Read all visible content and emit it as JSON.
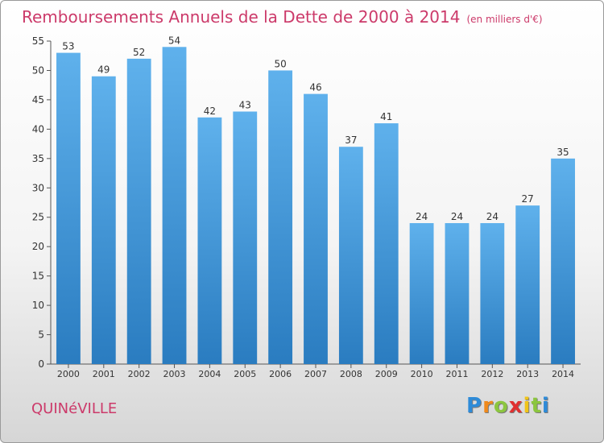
{
  "title": "Remboursements Annuels de la Dette de 2000 à 2014",
  "unit_note": "(en milliers d'€)",
  "town": "QUINéVILLE",
  "logo": {
    "letters": [
      "P",
      "r",
      "o",
      "x",
      "i",
      "t",
      "i"
    ],
    "colors": [
      "#2e8bd8",
      "#f08a1c",
      "#8cc63f",
      "#e03030",
      "#f0c419",
      "#8cc63f",
      "#2e8bd8"
    ]
  },
  "colors": {
    "bar_top": "#5fb1ec",
    "bar_bottom": "#2a7cc0",
    "title": "#cc3a6a"
  },
  "chart_data": {
    "type": "bar",
    "categories": [
      "2000",
      "2001",
      "2002",
      "2003",
      "2004",
      "2005",
      "2006",
      "2007",
      "2008",
      "2009",
      "2010",
      "2011",
      "2012",
      "2013",
      "2014"
    ],
    "values": [
      53,
      49,
      52,
      54,
      42,
      43,
      50,
      46,
      37,
      41,
      24,
      24,
      24,
      27,
      35
    ],
    "ylim": [
      0,
      55
    ],
    "yticks": [
      0,
      5,
      10,
      15,
      20,
      25,
      30,
      35,
      40,
      45,
      50,
      55
    ],
    "grid": false,
    "xlabel": "",
    "ylabel": ""
  }
}
